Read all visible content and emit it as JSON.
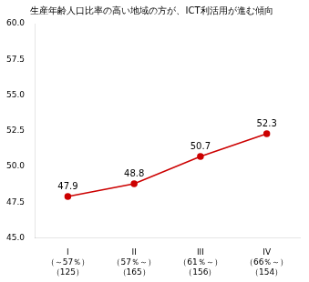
{
  "chart_data": {
    "type": "line",
    "title": "生産年齢人口比率の高い地域の方が、ICT利活用が進む傾向",
    "categories": [
      [
        "I",
        "（～57％）",
        "（125）"
      ],
      [
        "II",
        "（57％～）",
        "（165）"
      ],
      [
        "III",
        "（61％～）",
        "（156）"
      ],
      [
        "IV",
        "（66％～）",
        "（154）"
      ]
    ],
    "values": [
      47.9,
      48.8,
      50.7,
      52.3
    ],
    "color": "#cc0000",
    "marker": "circle",
    "ylim": [
      45.0,
      60.0
    ],
    "yticks": [
      {
        "value": 45,
        "label": "45.0"
      },
      47.5,
      {
        "value": 50,
        "label": "50.0"
      },
      52.5,
      {
        "value": 55,
        "label": "55.0"
      },
      57.5,
      {
        "value": 60,
        "label": "60.0"
      }
    ],
    "grid": false,
    "data_labels": true
  }
}
